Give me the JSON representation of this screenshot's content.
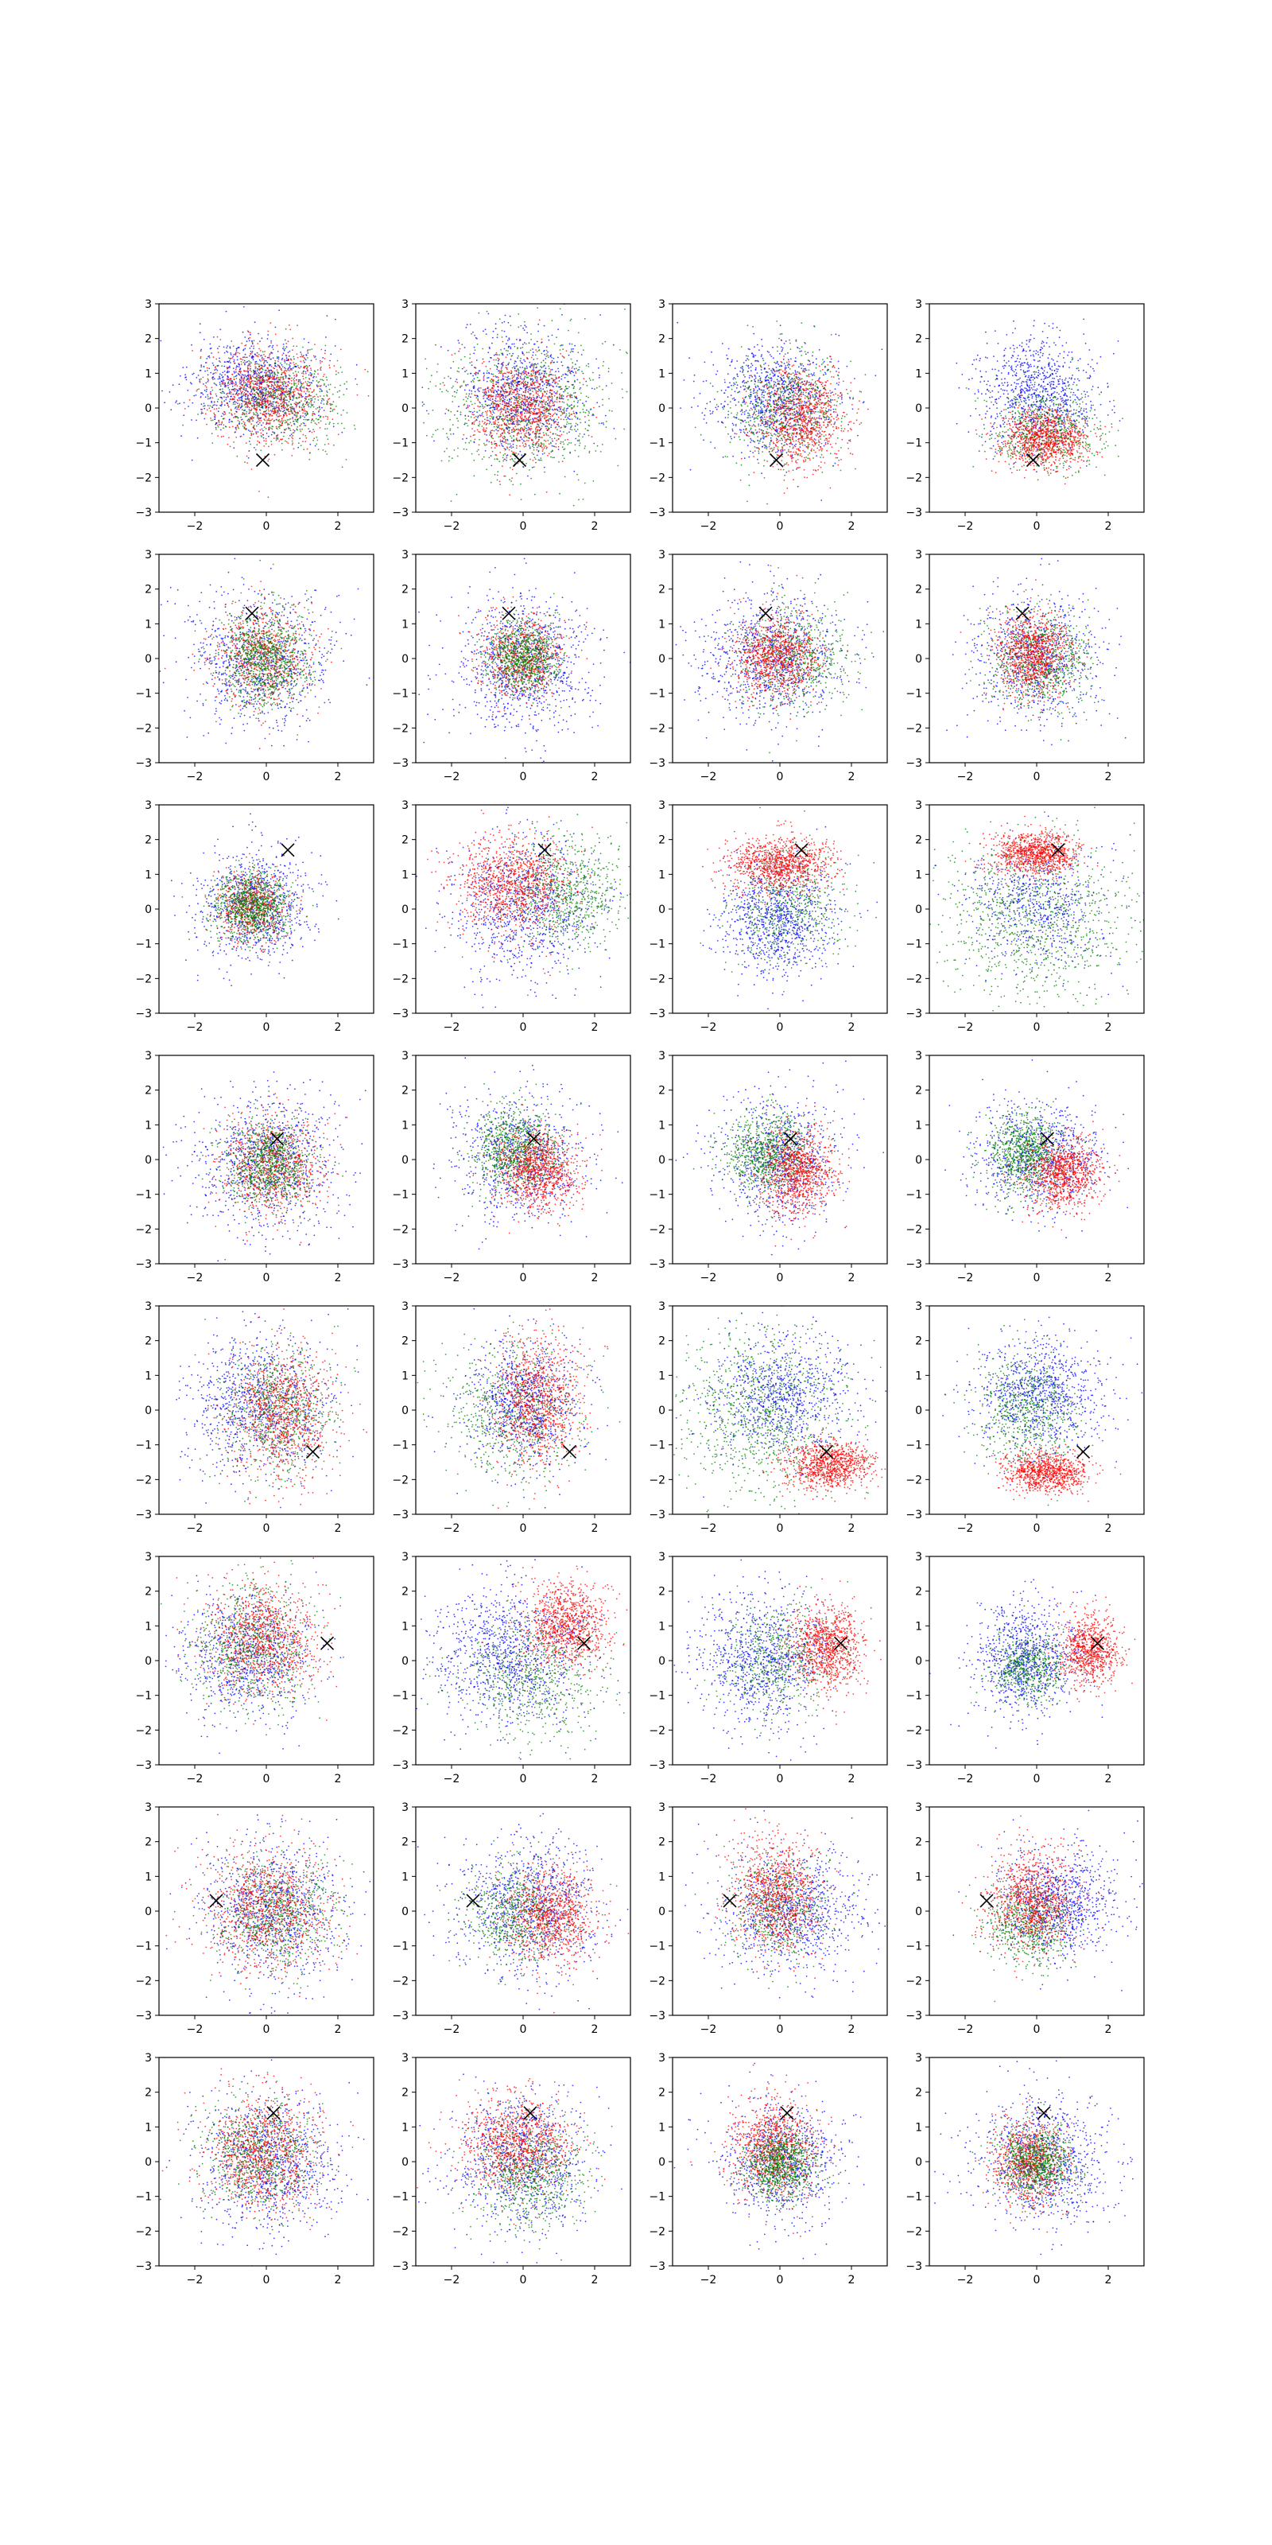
{
  "figure": {
    "grid_rows": 8,
    "grid_cols": 4,
    "series_colors": {
      "red": "#ff0000",
      "green": "#008000",
      "blue": "#0000ff"
    },
    "marker": {
      "symbol": "x",
      "color": "#000000"
    }
  },
  "chart_data": {
    "type": "scatter",
    "title": "",
    "xlabel": "",
    "ylabel": "",
    "xlim": [
      -3,
      3
    ],
    "ylim": [
      -3,
      3
    ],
    "x_ticks": [
      -2,
      0,
      2
    ],
    "y_ticks": [
      -3,
      -2,
      -1,
      0,
      1,
      2,
      3
    ],
    "grid": false,
    "legend": "none",
    "rows": [
      {
        "marker": [
          -0.1,
          -1.5
        ],
        "panels": [
          [
            {
              "c": "blue",
              "mx": -0.3,
              "my": 0.6,
              "sx": 0.9,
              "sy": 0.7,
              "n": 900
            },
            {
              "c": "green",
              "mx": 0.3,
              "my": 0.3,
              "sx": 0.9,
              "sy": 0.7,
              "n": 700
            },
            {
              "c": "red",
              "mx": 0.1,
              "my": 0.4,
              "sx": 0.8,
              "sy": 0.7,
              "n": 900
            }
          ],
          [
            {
              "c": "green",
              "mx": 0.1,
              "my": 0.0,
              "sx": 1.2,
              "sy": 1.0,
              "n": 900
            },
            {
              "c": "blue",
              "mx": 0.0,
              "my": 0.5,
              "sx": 0.9,
              "sy": 0.9,
              "n": 800
            },
            {
              "c": "red",
              "mx": -0.1,
              "my": 0.0,
              "sx": 0.7,
              "sy": 0.7,
              "n": 900
            }
          ],
          [
            {
              "c": "blue",
              "mx": -0.1,
              "my": 0.3,
              "sx": 0.9,
              "sy": 0.8,
              "n": 900
            },
            {
              "c": "green",
              "mx": 0.0,
              "my": 0.0,
              "sx": 0.8,
              "sy": 0.8,
              "n": 600
            },
            {
              "c": "red",
              "mx": 0.6,
              "my": -0.3,
              "sx": 0.6,
              "sy": 0.7,
              "n": 900
            }
          ],
          [
            {
              "c": "blue",
              "mx": 0.0,
              "my": 0.4,
              "sx": 0.8,
              "sy": 0.8,
              "n": 900
            },
            {
              "c": "green",
              "mx": 0.3,
              "my": -0.6,
              "sx": 0.8,
              "sy": 0.6,
              "n": 600
            },
            {
              "c": "red",
              "mx": 0.2,
              "my": -0.9,
              "sx": 0.6,
              "sy": 0.4,
              "n": 900
            }
          ]
        ]
      },
      {
        "marker": [
          -0.4,
          1.3
        ],
        "panels": [
          [
            {
              "c": "blue",
              "mx": -0.2,
              "my": 0.0,
              "sx": 1.0,
              "sy": 1.0,
              "n": 800
            },
            {
              "c": "red",
              "mx": -0.1,
              "my": 0.1,
              "sx": 0.7,
              "sy": 0.7,
              "n": 700
            },
            {
              "c": "green",
              "mx": 0.0,
              "my": 0.0,
              "sx": 0.6,
              "sy": 0.7,
              "n": 900
            }
          ],
          [
            {
              "c": "blue",
              "mx": 0.0,
              "my": -0.2,
              "sx": 1.0,
              "sy": 1.0,
              "n": 900
            },
            {
              "c": "red",
              "mx": 0.0,
              "my": 0.1,
              "sx": 0.6,
              "sy": 0.6,
              "n": 700
            },
            {
              "c": "green",
              "mx": 0.0,
              "my": 0.0,
              "sx": 0.5,
              "sy": 0.5,
              "n": 800
            }
          ],
          [
            {
              "c": "blue",
              "mx": -0.2,
              "my": 0.0,
              "sx": 1.0,
              "sy": 0.9,
              "n": 900
            },
            {
              "c": "green",
              "mx": 0.4,
              "my": 0.1,
              "sx": 0.8,
              "sy": 0.8,
              "n": 600
            },
            {
              "c": "red",
              "mx": -0.1,
              "my": 0.1,
              "sx": 0.6,
              "sy": 0.6,
              "n": 900
            }
          ],
          [
            {
              "c": "blue",
              "mx": 0.0,
              "my": 0.0,
              "sx": 0.9,
              "sy": 0.9,
              "n": 800
            },
            {
              "c": "green",
              "mx": 0.1,
              "my": 0.0,
              "sx": 0.7,
              "sy": 0.7,
              "n": 700
            },
            {
              "c": "red",
              "mx": -0.1,
              "my": 0.1,
              "sx": 0.5,
              "sy": 0.6,
              "n": 900
            }
          ]
        ]
      },
      {
        "marker": [
          0.6,
          1.7
        ],
        "panels": [
          [
            {
              "c": "blue",
              "mx": -0.3,
              "my": 0.1,
              "sx": 0.8,
              "sy": 0.8,
              "n": 800
            },
            {
              "c": "red",
              "mx": -0.4,
              "my": 0.1,
              "sx": 0.5,
              "sy": 0.5,
              "n": 600
            },
            {
              "c": "green",
              "mx": -0.4,
              "my": 0.1,
              "sx": 0.5,
              "sy": 0.5,
              "n": 900
            }
          ],
          [
            {
              "c": "blue",
              "mx": 0.0,
              "my": 0.0,
              "sx": 1.0,
              "sy": 1.0,
              "n": 900
            },
            {
              "c": "green",
              "mx": 1.2,
              "my": 0.5,
              "sx": 0.8,
              "sy": 0.8,
              "n": 700
            },
            {
              "c": "red",
              "mx": -0.3,
              "my": 0.7,
              "sx": 0.8,
              "sy": 0.7,
              "n": 1000
            }
          ],
          [
            {
              "c": "blue",
              "mx": -0.1,
              "my": -0.3,
              "sx": 0.8,
              "sy": 0.8,
              "n": 900
            },
            {
              "c": "green",
              "mx": 0.3,
              "my": 0.1,
              "sx": 0.8,
              "sy": 0.8,
              "n": 500
            },
            {
              "c": "red",
              "mx": 0.0,
              "my": 1.3,
              "sx": 0.7,
              "sy": 0.4,
              "n": 1000
            }
          ],
          [
            {
              "c": "green",
              "mx": 0.0,
              "my": -0.3,
              "sx": 1.4,
              "sy": 1.2,
              "n": 1000
            },
            {
              "c": "blue",
              "mx": 0.0,
              "my": 0.2,
              "sx": 1.0,
              "sy": 0.9,
              "n": 600
            },
            {
              "c": "red",
              "mx": 0.0,
              "my": 1.6,
              "sx": 0.6,
              "sy": 0.3,
              "n": 900
            }
          ]
        ]
      },
      {
        "marker": [
          0.3,
          0.6
        ],
        "panels": [
          [
            {
              "c": "blue",
              "mx": 0.0,
              "my": 0.0,
              "sx": 1.0,
              "sy": 1.0,
              "n": 900
            },
            {
              "c": "red",
              "mx": 0.2,
              "my": -0.2,
              "sx": 0.7,
              "sy": 0.7,
              "n": 800
            },
            {
              "c": "green",
              "mx": 0.1,
              "my": -0.1,
              "sx": 0.6,
              "sy": 0.6,
              "n": 800
            }
          ],
          [
            {
              "c": "blue",
              "mx": 0.0,
              "my": 0.0,
              "sx": 0.9,
              "sy": 0.9,
              "n": 800
            },
            {
              "c": "green",
              "mx": -0.2,
              "my": 0.3,
              "sx": 0.6,
              "sy": 0.6,
              "n": 800
            },
            {
              "c": "red",
              "mx": 0.4,
              "my": -0.3,
              "sx": 0.6,
              "sy": 0.6,
              "n": 900
            }
          ],
          [
            {
              "c": "blue",
              "mx": 0.0,
              "my": 0.0,
              "sx": 0.9,
              "sy": 0.9,
              "n": 800
            },
            {
              "c": "green",
              "mx": -0.3,
              "my": 0.2,
              "sx": 0.6,
              "sy": 0.6,
              "n": 800
            },
            {
              "c": "red",
              "mx": 0.5,
              "my": -0.4,
              "sx": 0.5,
              "sy": 0.6,
              "n": 900
            }
          ],
          [
            {
              "c": "blue",
              "mx": 0.1,
              "my": 0.1,
              "sx": 0.9,
              "sy": 0.8,
              "n": 800
            },
            {
              "c": "green",
              "mx": -0.3,
              "my": 0.2,
              "sx": 0.5,
              "sy": 0.6,
              "n": 800
            },
            {
              "c": "red",
              "mx": 0.8,
              "my": -0.4,
              "sx": 0.5,
              "sy": 0.5,
              "n": 900
            }
          ]
        ]
      },
      {
        "marker": [
          1.3,
          -1.2
        ],
        "panels": [
          [
            {
              "c": "blue",
              "mx": -0.2,
              "my": 0.2,
              "sx": 1.0,
              "sy": 1.0,
              "n": 900
            },
            {
              "c": "green",
              "mx": 0.3,
              "my": 0.0,
              "sx": 0.8,
              "sy": 0.9,
              "n": 700
            },
            {
              "c": "red",
              "mx": 0.4,
              "my": -0.1,
              "sx": 0.7,
              "sy": 0.9,
              "n": 900
            }
          ],
          [
            {
              "c": "green",
              "mx": -0.3,
              "my": 0.0,
              "sx": 1.0,
              "sy": 1.0,
              "n": 700
            },
            {
              "c": "blue",
              "mx": 0.0,
              "my": 0.2,
              "sx": 0.8,
              "sy": 0.9,
              "n": 800
            },
            {
              "c": "red",
              "mx": 0.4,
              "my": 0.3,
              "sx": 0.6,
              "sy": 0.9,
              "n": 900
            }
          ],
          [
            {
              "c": "green",
              "mx": -0.5,
              "my": 0.0,
              "sx": 1.2,
              "sy": 1.2,
              "n": 1000
            },
            {
              "c": "blue",
              "mx": 0.1,
              "my": 0.4,
              "sx": 1.0,
              "sy": 0.9,
              "n": 800
            },
            {
              "c": "red",
              "mx": 1.4,
              "my": -1.6,
              "sx": 0.6,
              "sy": 0.35,
              "n": 900
            }
          ],
          [
            {
              "c": "blue",
              "mx": 0.1,
              "my": 0.4,
              "sx": 0.9,
              "sy": 0.8,
              "n": 900
            },
            {
              "c": "green",
              "mx": -0.3,
              "my": 0.0,
              "sx": 0.7,
              "sy": 0.8,
              "n": 600
            },
            {
              "c": "red",
              "mx": 0.3,
              "my": -1.8,
              "sx": 0.6,
              "sy": 0.3,
              "n": 900
            }
          ]
        ]
      },
      {
        "marker": [
          1.7,
          0.5
        ],
        "panels": [
          [
            {
              "c": "blue",
              "mx": -0.5,
              "my": 0.2,
              "sx": 0.9,
              "sy": 0.9,
              "n": 800
            },
            {
              "c": "green",
              "mx": -0.4,
              "my": 0.4,
              "sx": 0.8,
              "sy": 0.9,
              "n": 700
            },
            {
              "c": "red",
              "mx": -0.1,
              "my": 0.6,
              "sx": 0.8,
              "sy": 0.8,
              "n": 900
            }
          ],
          [
            {
              "c": "blue",
              "mx": -0.4,
              "my": 0.2,
              "sx": 1.1,
              "sy": 1.0,
              "n": 1000
            },
            {
              "c": "green",
              "mx": 0.3,
              "my": -0.6,
              "sx": 1.0,
              "sy": 0.9,
              "n": 600
            },
            {
              "c": "red",
              "mx": 1.2,
              "my": 1.0,
              "sx": 0.6,
              "sy": 0.6,
              "n": 900
            }
          ],
          [
            {
              "c": "blue",
              "mx": -0.5,
              "my": 0.0,
              "sx": 0.9,
              "sy": 0.9,
              "n": 900
            },
            {
              "c": "green",
              "mx": -0.1,
              "my": 0.0,
              "sx": 0.8,
              "sy": 0.8,
              "n": 500
            },
            {
              "c": "red",
              "mx": 1.3,
              "my": 0.4,
              "sx": 0.5,
              "sy": 0.6,
              "n": 900
            }
          ],
          [
            {
              "c": "blue",
              "mx": -0.3,
              "my": 0.0,
              "sx": 0.7,
              "sy": 0.8,
              "n": 900
            },
            {
              "c": "green",
              "mx": -0.2,
              "my": -0.2,
              "sx": 0.5,
              "sy": 0.5,
              "n": 500
            },
            {
              "c": "red",
              "mx": 1.5,
              "my": 0.3,
              "sx": 0.4,
              "sy": 0.5,
              "n": 800
            }
          ]
        ]
      },
      {
        "marker": [
          -1.4,
          0.3
        ],
        "panels": [
          [
            {
              "c": "blue",
              "mx": 0.2,
              "my": 0.0,
              "sx": 1.0,
              "sy": 1.0,
              "n": 900
            },
            {
              "c": "green",
              "mx": 0.3,
              "my": 0.0,
              "sx": 0.8,
              "sy": 0.8,
              "n": 700
            },
            {
              "c": "red",
              "mx": 0.0,
              "my": 0.1,
              "sx": 0.9,
              "sy": 0.9,
              "n": 900
            }
          ],
          [
            {
              "c": "blue",
              "mx": 0.1,
              "my": 0.1,
              "sx": 1.0,
              "sy": 1.0,
              "n": 900
            },
            {
              "c": "green",
              "mx": -0.2,
              "my": -0.1,
              "sx": 0.7,
              "sy": 0.7,
              "n": 600
            },
            {
              "c": "red",
              "mx": 0.8,
              "my": -0.1,
              "sx": 0.6,
              "sy": 0.7,
              "n": 900
            }
          ],
          [
            {
              "c": "blue",
              "mx": 0.4,
              "my": 0.0,
              "sx": 1.0,
              "sy": 0.9,
              "n": 900
            },
            {
              "c": "green",
              "mx": 0.0,
              "my": 0.0,
              "sx": 0.7,
              "sy": 0.7,
              "n": 500
            },
            {
              "c": "red",
              "mx": -0.1,
              "my": 0.5,
              "sx": 0.6,
              "sy": 0.8,
              "n": 900
            }
          ],
          [
            {
              "c": "blue",
              "mx": 0.6,
              "my": 0.2,
              "sx": 0.8,
              "sy": 0.8,
              "n": 900
            },
            {
              "c": "green",
              "mx": -0.2,
              "my": -0.4,
              "sx": 0.6,
              "sy": 0.6,
              "n": 600
            },
            {
              "c": "red",
              "mx": -0.1,
              "my": 0.3,
              "sx": 0.6,
              "sy": 0.7,
              "n": 900
            }
          ]
        ]
      },
      {
        "marker": [
          0.2,
          1.4
        ],
        "panels": [
          [
            {
              "c": "blue",
              "mx": 0.1,
              "my": 0.0,
              "sx": 1.0,
              "sy": 1.0,
              "n": 900
            },
            {
              "c": "green",
              "mx": -0.2,
              "my": 0.2,
              "sx": 0.8,
              "sy": 0.8,
              "n": 700
            },
            {
              "c": "red",
              "mx": -0.1,
              "my": 0.3,
              "sx": 0.8,
              "sy": 0.8,
              "n": 900
            }
          ],
          [
            {
              "c": "blue",
              "mx": 0.0,
              "my": 0.0,
              "sx": 1.0,
              "sy": 1.0,
              "n": 900
            },
            {
              "c": "green",
              "mx": 0.2,
              "my": -0.3,
              "sx": 0.8,
              "sy": 0.8,
              "n": 700
            },
            {
              "c": "red",
              "mx": -0.2,
              "my": 0.5,
              "sx": 0.8,
              "sy": 0.7,
              "n": 900
            }
          ],
          [
            {
              "c": "blue",
              "mx": 0.1,
              "my": 0.0,
              "sx": 0.9,
              "sy": 0.9,
              "n": 800
            },
            {
              "c": "red",
              "mx": -0.2,
              "my": 0.4,
              "sx": 0.6,
              "sy": 0.7,
              "n": 900
            },
            {
              "c": "green",
              "mx": 0.0,
              "my": -0.1,
              "sx": 0.5,
              "sy": 0.5,
              "n": 800
            }
          ],
          [
            {
              "c": "blue",
              "mx": 0.2,
              "my": 0.0,
              "sx": 0.9,
              "sy": 0.9,
              "n": 900
            },
            {
              "c": "red",
              "mx": -0.2,
              "my": 0.0,
              "sx": 0.5,
              "sy": 0.6,
              "n": 800
            },
            {
              "c": "green",
              "mx": 0.0,
              "my": 0.0,
              "sx": 0.5,
              "sy": 0.5,
              "n": 800
            }
          ]
        ]
      }
    ]
  }
}
